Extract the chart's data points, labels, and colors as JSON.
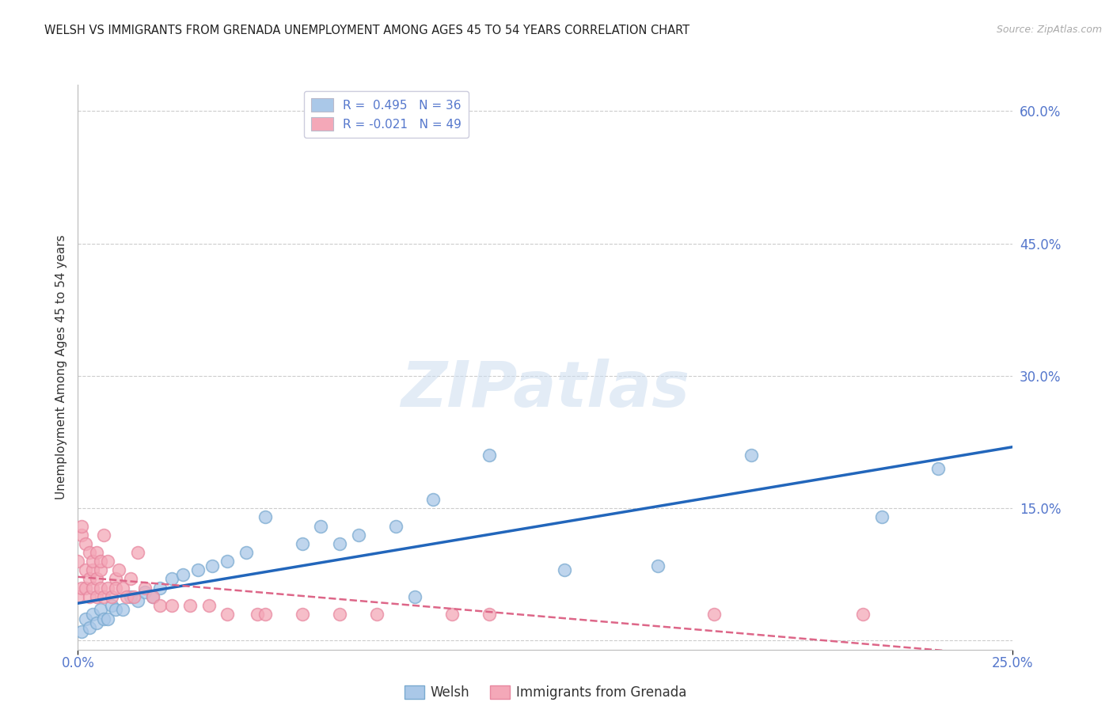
{
  "title": "WELSH VS IMMIGRANTS FROM GRENADA UNEMPLOYMENT AMONG AGES 45 TO 54 YEARS CORRELATION CHART",
  "source": "Source: ZipAtlas.com",
  "ylabel": "Unemployment Among Ages 45 to 54 years",
  "xlim": [
    0.0,
    0.25
  ],
  "ylim": [
    -0.01,
    0.63
  ],
  "xticks": [
    0.0,
    0.05,
    0.1,
    0.15,
    0.2,
    0.25
  ],
  "xtick_labels": [
    "0.0%",
    "",
    "",
    "",
    "",
    "25.0%"
  ],
  "yticks": [
    0.0,
    0.15,
    0.3,
    0.45,
    0.6
  ],
  "ytick_labels": [
    "",
    "15.0%",
    "30.0%",
    "45.0%",
    "60.0%"
  ],
  "welsh_R": 0.495,
  "welsh_N": 36,
  "grenada_R": -0.021,
  "grenada_N": 49,
  "welsh_color": "#aac8e8",
  "grenada_color": "#f4a8b8",
  "welsh_edge_color": "#7aaad0",
  "grenada_edge_color": "#e888a0",
  "welsh_line_color": "#2266bb",
  "grenada_line_color": "#dd6688",
  "legend_label_welsh": "Welsh",
  "legend_label_grenada": "Immigrants from Grenada",
  "watermark": "ZIPatlas",
  "welsh_x": [
    0.001,
    0.002,
    0.003,
    0.004,
    0.005,
    0.006,
    0.007,
    0.008,
    0.009,
    0.01,
    0.012,
    0.014,
    0.016,
    0.018,
    0.02,
    0.022,
    0.025,
    0.028,
    0.032,
    0.036,
    0.04,
    0.045,
    0.05,
    0.06,
    0.065,
    0.07,
    0.075,
    0.085,
    0.09,
    0.095,
    0.11,
    0.13,
    0.155,
    0.18,
    0.215,
    0.23
  ],
  "welsh_y": [
    0.01,
    0.025,
    0.015,
    0.03,
    0.02,
    0.035,
    0.025,
    0.025,
    0.04,
    0.035,
    0.035,
    0.05,
    0.045,
    0.055,
    0.05,
    0.06,
    0.07,
    0.075,
    0.08,
    0.085,
    0.09,
    0.1,
    0.14,
    0.11,
    0.13,
    0.11,
    0.12,
    0.13,
    0.05,
    0.16,
    0.21,
    0.08,
    0.085,
    0.21,
    0.14,
    0.195
  ],
  "grenada_x": [
    0.0,
    0.0,
    0.001,
    0.001,
    0.001,
    0.002,
    0.002,
    0.002,
    0.003,
    0.003,
    0.003,
    0.004,
    0.004,
    0.004,
    0.005,
    0.005,
    0.005,
    0.006,
    0.006,
    0.006,
    0.007,
    0.007,
    0.008,
    0.008,
    0.009,
    0.01,
    0.01,
    0.011,
    0.012,
    0.013,
    0.014,
    0.015,
    0.016,
    0.018,
    0.02,
    0.022,
    0.025,
    0.03,
    0.035,
    0.04,
    0.048,
    0.05,
    0.06,
    0.07,
    0.08,
    0.1,
    0.11,
    0.17,
    0.21
  ],
  "grenada_y": [
    0.05,
    0.09,
    0.12,
    0.06,
    0.13,
    0.08,
    0.11,
    0.06,
    0.07,
    0.1,
    0.05,
    0.08,
    0.09,
    0.06,
    0.1,
    0.07,
    0.05,
    0.08,
    0.06,
    0.09,
    0.05,
    0.12,
    0.06,
    0.09,
    0.05,
    0.07,
    0.06,
    0.08,
    0.06,
    0.05,
    0.07,
    0.05,
    0.1,
    0.06,
    0.05,
    0.04,
    0.04,
    0.04,
    0.04,
    0.03,
    0.03,
    0.03,
    0.03,
    0.03,
    0.03,
    0.03,
    0.03,
    0.03,
    0.03
  ]
}
